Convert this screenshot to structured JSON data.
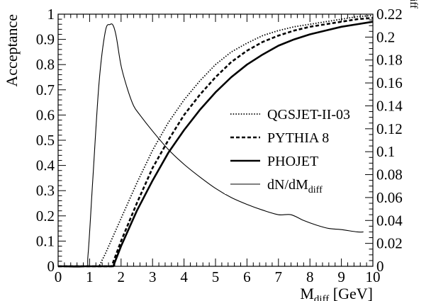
{
  "chart_data": {
    "type": "line",
    "title": "",
    "xlabel": "M",
    "xlabel_sub": "diff",
    "xlabel_unit": " [GeV]",
    "ylabel": "Acceptance",
    "y2label": "dN/dM",
    "y2label_sub": "diff",
    "xlim": [
      0,
      10
    ],
    "ylim": [
      0,
      1
    ],
    "y2lim": [
      0,
      0.22
    ],
    "x_ticks": [
      "0",
      "1",
      "2",
      "3",
      "4",
      "5",
      "6",
      "7",
      "8",
      "9",
      "10"
    ],
    "y_ticks": [
      "0",
      "0.1",
      "0.2",
      "0.3",
      "0.4",
      "0.5",
      "0.6",
      "0.7",
      "0.8",
      "0.9",
      "1"
    ],
    "y2_ticks": [
      "0",
      "0.02",
      "0.04",
      "0.06",
      "0.08",
      "0.1",
      "0.12",
      "0.14",
      "0.16",
      "0.18",
      "0.2",
      "0.22"
    ],
    "grid": false,
    "legend_position": "center-right",
    "series": [
      {
        "name": "QGSJET-II-03",
        "axis": "left",
        "style": "dotted",
        "x": [
          0,
          1.3,
          1.5,
          2,
          2.5,
          3,
          3.5,
          4,
          4.5,
          5,
          5.5,
          6,
          6.5,
          7,
          7.5,
          8,
          8.5,
          9,
          9.5,
          10
        ],
        "y": [
          0,
          0,
          0.05,
          0.19,
          0.33,
          0.46,
          0.57,
          0.66,
          0.735,
          0.8,
          0.85,
          0.885,
          0.915,
          0.935,
          0.95,
          0.96,
          0.97,
          0.98,
          0.99,
          0.995
        ]
      },
      {
        "name": "PYTHIA 8",
        "axis": "left",
        "style": "dashed",
        "x": [
          0,
          1.7,
          2,
          2.5,
          3,
          3.5,
          4,
          4.5,
          5,
          5.5,
          6,
          6.5,
          7,
          7.5,
          8,
          8.5,
          9,
          9.5,
          10
        ],
        "y": [
          0,
          0,
          0.1,
          0.25,
          0.39,
          0.5,
          0.6,
          0.68,
          0.75,
          0.81,
          0.855,
          0.89,
          0.915,
          0.935,
          0.95,
          0.96,
          0.97,
          0.98,
          0.985
        ]
      },
      {
        "name": "PHOJET",
        "axis": "left",
        "style": "solid-thick",
        "x": [
          0,
          1.75,
          2,
          2.5,
          3,
          3.5,
          4,
          4.5,
          5,
          5.5,
          6,
          6.5,
          7,
          7.5,
          8,
          8.5,
          9,
          9.5,
          10
        ],
        "y": [
          0,
          0,
          0.08,
          0.22,
          0.34,
          0.45,
          0.54,
          0.62,
          0.69,
          0.75,
          0.8,
          0.84,
          0.875,
          0.9,
          0.92,
          0.935,
          0.95,
          0.96,
          0.97
        ]
      },
      {
        "name": "dN/dM",
        "name_sub": "diff",
        "axis": "right",
        "style": "solid-thin",
        "x": [
          0,
          0.85,
          0.95,
          1.1,
          1.3,
          1.5,
          1.65,
          1.75,
          1.85,
          2.0,
          2.2,
          2.4,
          2.6,
          3,
          3.5,
          4,
          4.5,
          5,
          5.5,
          6,
          6.5,
          7,
          7.4,
          7.8,
          8.2,
          8.6,
          9,
          9.5,
          9.7
        ],
        "y": [
          0,
          0,
          0.01,
          0.075,
          0.16,
          0.205,
          0.211,
          0.21,
          0.2,
          0.175,
          0.155,
          0.14,
          0.132,
          0.118,
          0.102,
          0.089,
          0.078,
          0.068,
          0.06,
          0.054,
          0.049,
          0.045,
          0.045,
          0.04,
          0.036,
          0.033,
          0.032,
          0.03,
          0.03
        ]
      }
    ]
  }
}
